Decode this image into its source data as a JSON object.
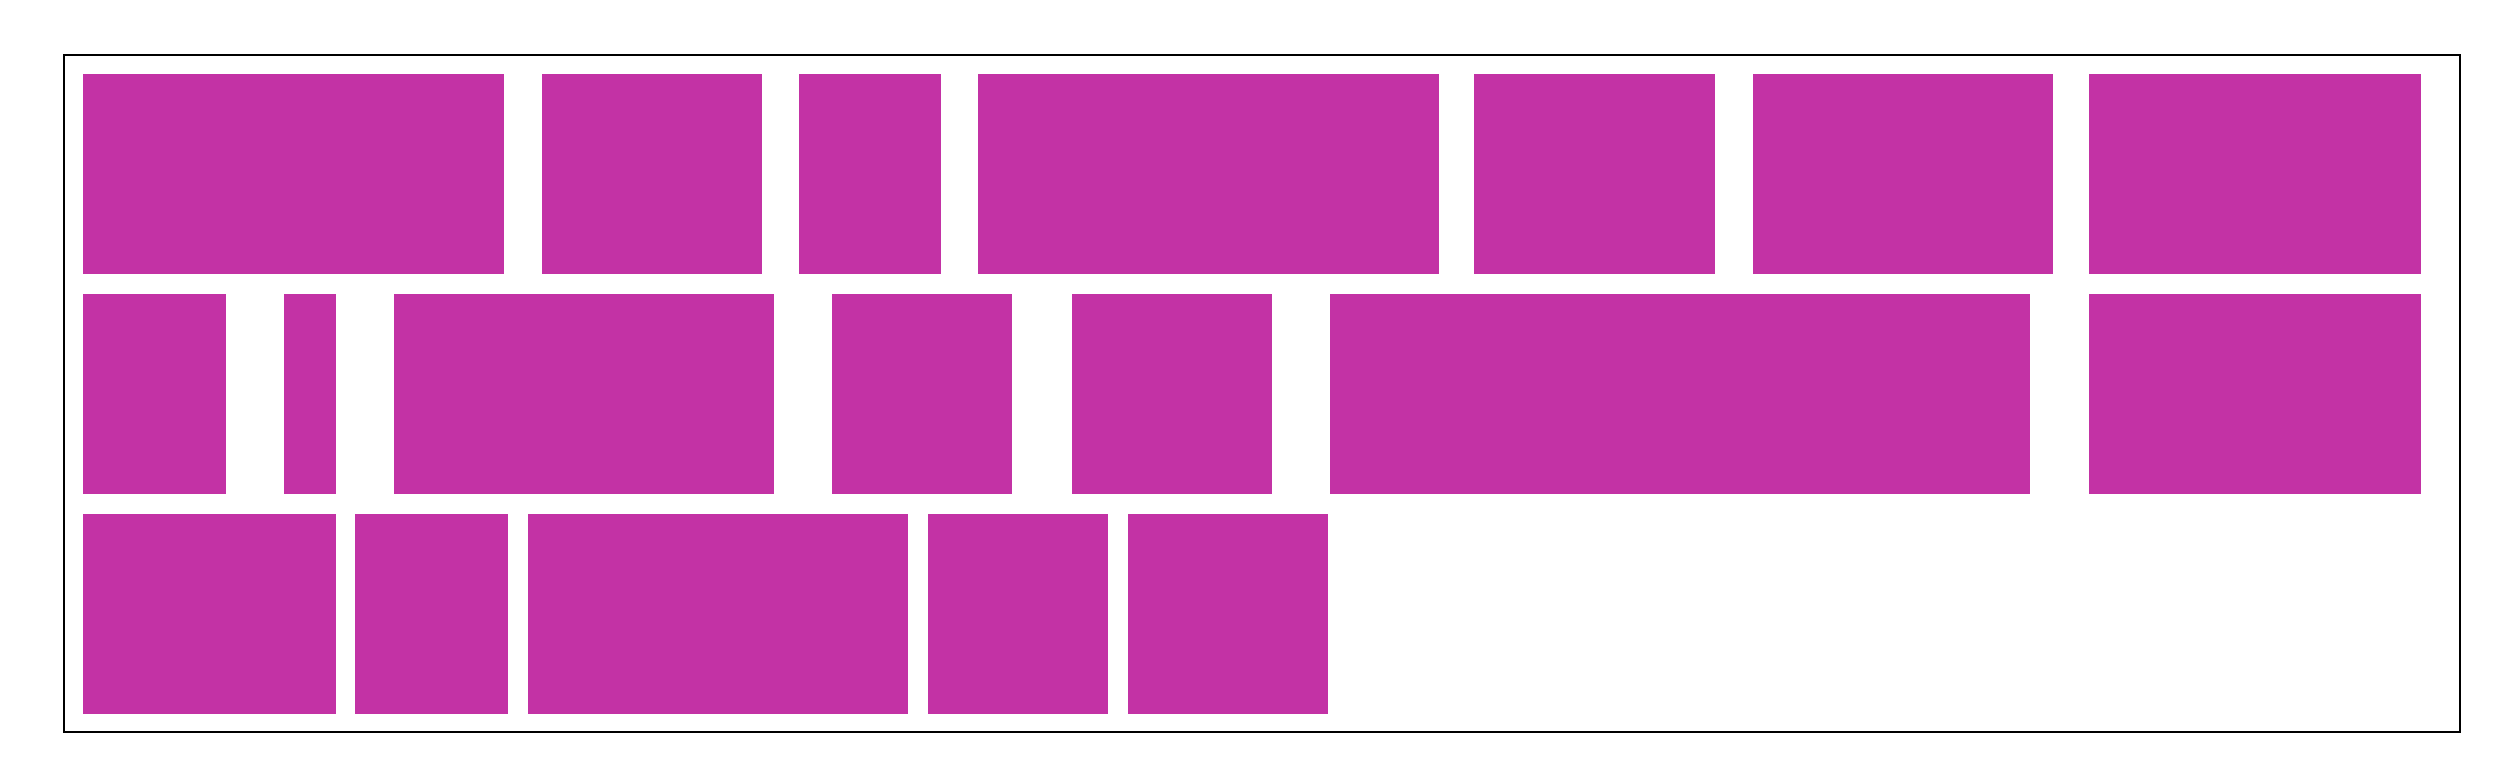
{
  "theme": {
    "box_color": "#C332A5",
    "frame_color": "#000000",
    "background": "#FFFFFF"
  },
  "rows": [
    {
      "box_count": 7
    },
    {
      "box_count": 7
    },
    {
      "box_count": 5
    }
  ]
}
